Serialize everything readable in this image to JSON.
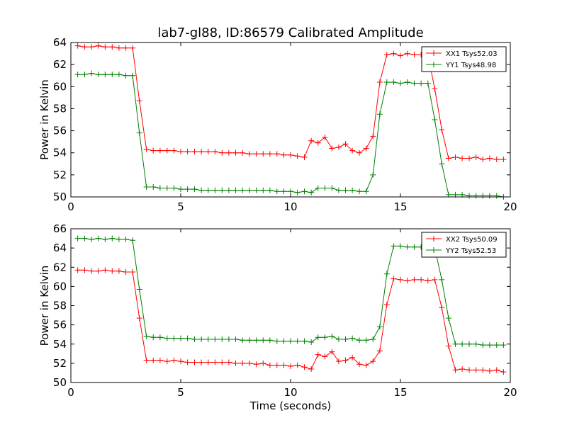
{
  "title": "lab7-gl88, ID:86579 Calibrated Amplitude",
  "colors": {
    "red": "#ff0000",
    "green": "#008000"
  },
  "chart_data": [
    {
      "type": "line",
      "title": "lab7-gl88, ID:86579 Calibrated Amplitude",
      "xlabel": "",
      "ylabel": "Power in Kelvin",
      "xlim": [
        0,
        20
      ],
      "ylim": [
        50,
        64
      ],
      "xticks": [
        0,
        5,
        10,
        15,
        20
      ],
      "yticks": [
        50,
        52,
        54,
        56,
        58,
        60,
        62,
        64
      ],
      "legend": "top-right",
      "grid": false,
      "x": [
        0.31,
        0.63,
        0.94,
        1.25,
        1.56,
        1.88,
        2.19,
        2.5,
        2.81,
        3.12,
        3.44,
        3.75,
        4.06,
        4.38,
        4.69,
        5.0,
        5.31,
        5.63,
        5.94,
        6.25,
        6.56,
        6.88,
        7.19,
        7.5,
        7.81,
        8.13,
        8.44,
        8.75,
        9.06,
        9.38,
        9.69,
        10.0,
        10.31,
        10.63,
        10.94,
        11.25,
        11.56,
        11.88,
        12.19,
        12.5,
        12.81,
        13.13,
        13.44,
        13.75,
        14.06,
        14.38,
        14.69,
        15.0,
        15.31,
        15.63,
        15.94,
        16.25,
        16.56,
        16.88,
        17.19,
        17.5,
        17.81,
        18.13,
        18.44,
        18.75,
        19.06,
        19.38,
        19.69
      ],
      "series": [
        {
          "name": "XX1 Tsys52.03",
          "color": "#ff0000",
          "values": [
            63.7,
            63.6,
            63.6,
            63.7,
            63.6,
            63.6,
            63.5,
            63.5,
            63.5,
            58.7,
            54.3,
            54.2,
            54.2,
            54.2,
            54.2,
            54.1,
            54.1,
            54.1,
            54.1,
            54.1,
            54.1,
            54.0,
            54.0,
            54.0,
            54.0,
            53.9,
            53.9,
            53.9,
            53.9,
            53.9,
            53.8,
            53.8,
            53.7,
            53.6,
            55.1,
            54.9,
            55.4,
            54.4,
            54.5,
            54.8,
            54.2,
            54.0,
            54.4,
            55.5,
            60.4,
            62.9,
            63.0,
            62.8,
            63.0,
            62.9,
            62.9,
            62.9,
            59.8,
            56.1,
            53.5,
            53.6,
            53.5,
            53.5,
            53.6,
            53.4,
            53.5,
            53.4,
            53.4
          ]
        },
        {
          "name": "YY1 Tsys48.98",
          "color": "#008000",
          "values": [
            61.1,
            61.1,
            61.2,
            61.1,
            61.1,
            61.1,
            61.1,
            61.0,
            61.0,
            55.8,
            50.9,
            50.9,
            50.8,
            50.8,
            50.8,
            50.7,
            50.7,
            50.7,
            50.6,
            50.6,
            50.6,
            50.6,
            50.6,
            50.6,
            50.6,
            50.6,
            50.6,
            50.6,
            50.6,
            50.5,
            50.5,
            50.5,
            50.4,
            50.5,
            50.4,
            50.8,
            50.8,
            50.8,
            50.6,
            50.6,
            50.6,
            50.5,
            50.5,
            52.0,
            57.5,
            60.4,
            60.4,
            60.3,
            60.4,
            60.3,
            60.3,
            60.3,
            57.0,
            53.0,
            50.2,
            50.2,
            50.2,
            50.1,
            50.1,
            50.1,
            50.1,
            50.1,
            50.0
          ]
        }
      ]
    },
    {
      "type": "line",
      "title": "",
      "xlabel": "Time (seconds)",
      "ylabel": "Power in Kelvin",
      "xlim": [
        0,
        20
      ],
      "ylim": [
        50,
        66
      ],
      "xticks": [
        0,
        5,
        10,
        15,
        20
      ],
      "yticks": [
        50,
        52,
        54,
        56,
        58,
        60,
        62,
        64,
        66
      ],
      "legend": "top-right",
      "grid": false,
      "x": [
        0.31,
        0.63,
        0.94,
        1.25,
        1.56,
        1.88,
        2.19,
        2.5,
        2.81,
        3.12,
        3.44,
        3.75,
        4.06,
        4.38,
        4.69,
        5.0,
        5.31,
        5.63,
        5.94,
        6.25,
        6.56,
        6.88,
        7.19,
        7.5,
        7.81,
        8.13,
        8.44,
        8.75,
        9.06,
        9.38,
        9.69,
        10.0,
        10.31,
        10.63,
        10.94,
        11.25,
        11.56,
        11.88,
        12.19,
        12.5,
        12.81,
        13.13,
        13.44,
        13.75,
        14.06,
        14.38,
        14.69,
        15.0,
        15.31,
        15.63,
        15.94,
        16.25,
        16.56,
        16.88,
        17.19,
        17.5,
        17.81,
        18.13,
        18.44,
        18.75,
        19.06,
        19.38,
        19.69
      ],
      "series": [
        {
          "name": "XX2 Tsys50.09",
          "color": "#ff0000",
          "values": [
            61.7,
            61.7,
            61.6,
            61.6,
            61.7,
            61.6,
            61.6,
            61.5,
            61.5,
            56.7,
            52.3,
            52.3,
            52.3,
            52.2,
            52.3,
            52.2,
            52.1,
            52.1,
            52.1,
            52.1,
            52.1,
            52.1,
            52.1,
            52.0,
            52.0,
            52.0,
            51.9,
            52.0,
            51.8,
            51.8,
            51.8,
            51.7,
            51.8,
            51.6,
            51.4,
            52.9,
            52.7,
            53.2,
            52.2,
            52.3,
            52.6,
            51.9,
            51.8,
            52.2,
            53.3,
            58.1,
            60.8,
            60.7,
            60.6,
            60.7,
            60.7,
            60.6,
            60.7,
            57.8,
            53.8,
            51.3,
            51.4,
            51.3,
            51.3,
            51.3,
            51.2,
            51.3,
            51.1
          ]
        },
        {
          "name": "YY2 Tsys52.53",
          "color": "#008000",
          "values": [
            65.0,
            65.0,
            64.9,
            65.0,
            64.9,
            65.0,
            64.9,
            64.9,
            64.8,
            59.7,
            54.8,
            54.7,
            54.7,
            54.6,
            54.6,
            54.6,
            54.6,
            54.5,
            54.5,
            54.5,
            54.5,
            54.5,
            54.5,
            54.5,
            54.4,
            54.4,
            54.4,
            54.4,
            54.4,
            54.3,
            54.3,
            54.3,
            54.3,
            54.3,
            54.2,
            54.7,
            54.7,
            54.8,
            54.5,
            54.5,
            54.6,
            54.4,
            54.4,
            54.5,
            55.8,
            61.3,
            64.2,
            64.2,
            64.1,
            64.1,
            64.1,
            64.1,
            64.0,
            60.7,
            56.7,
            54.0,
            54.0,
            54.0,
            54.0,
            53.9,
            53.9,
            53.9,
            53.9
          ]
        }
      ]
    }
  ]
}
